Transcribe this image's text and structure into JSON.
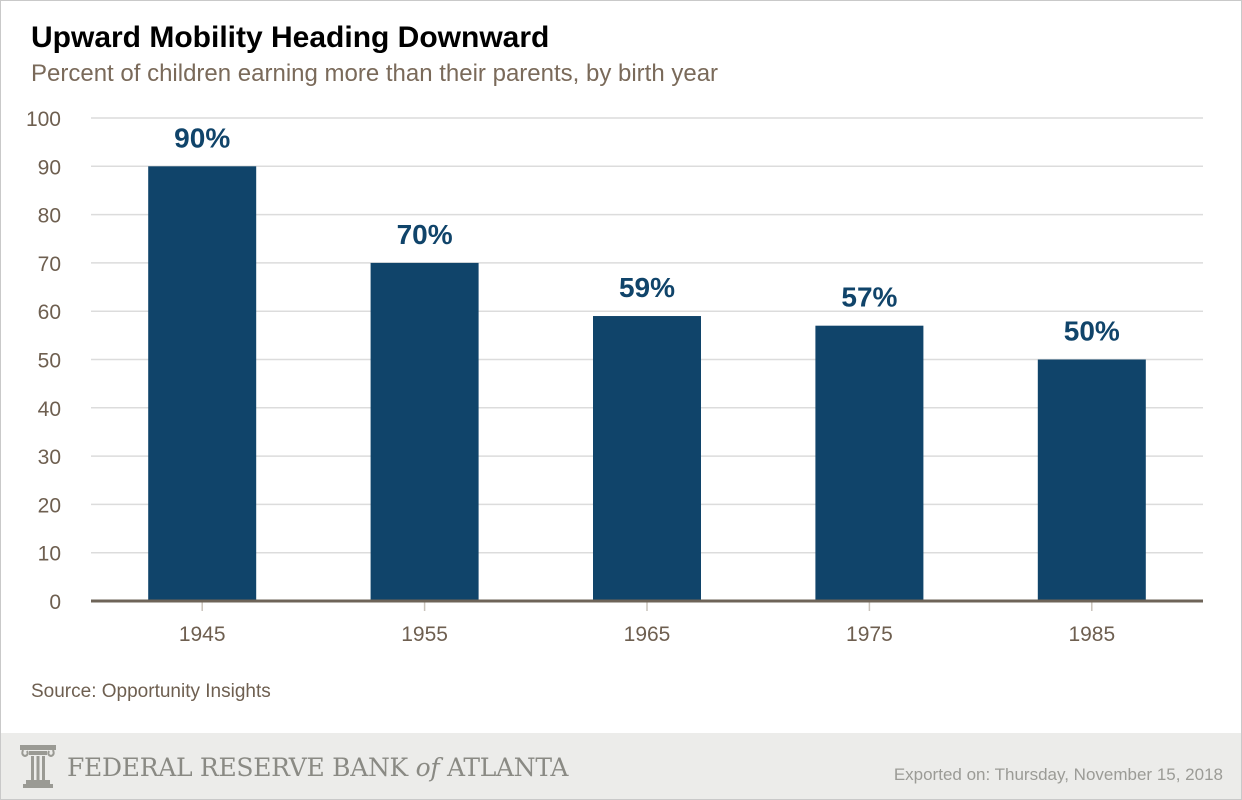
{
  "chart_data": {
    "type": "bar",
    "title": "Upward Mobility Heading Downward",
    "subtitle": "Percent of children earning more than their parents, by birth year",
    "categories": [
      "1945",
      "1955",
      "1965",
      "1975",
      "1985"
    ],
    "values": [
      90,
      70,
      59,
      57,
      50
    ],
    "data_labels": [
      "90%",
      "70%",
      "59%",
      "57%",
      "50%"
    ],
    "ylim": [
      0,
      100
    ],
    "yticks": [
      0,
      10,
      20,
      30,
      40,
      50,
      60,
      70,
      80,
      90,
      100
    ],
    "xlabel": "",
    "ylabel": "",
    "grid": true,
    "bar_color": "#10446a",
    "label_color": "#10446a",
    "grid_color": "#dcdcdc",
    "axis_color": "#6e6458"
  },
  "source": "Source: Opportunity Insights",
  "footer": {
    "logo_main": "FEDERAL RESERVE BANK",
    "logo_of": "of",
    "logo_end": "ATLANTA",
    "logo_icon": "atlanta-fed-seal-icon",
    "exported": "Exported on: Thursday, November 15, 2018"
  }
}
